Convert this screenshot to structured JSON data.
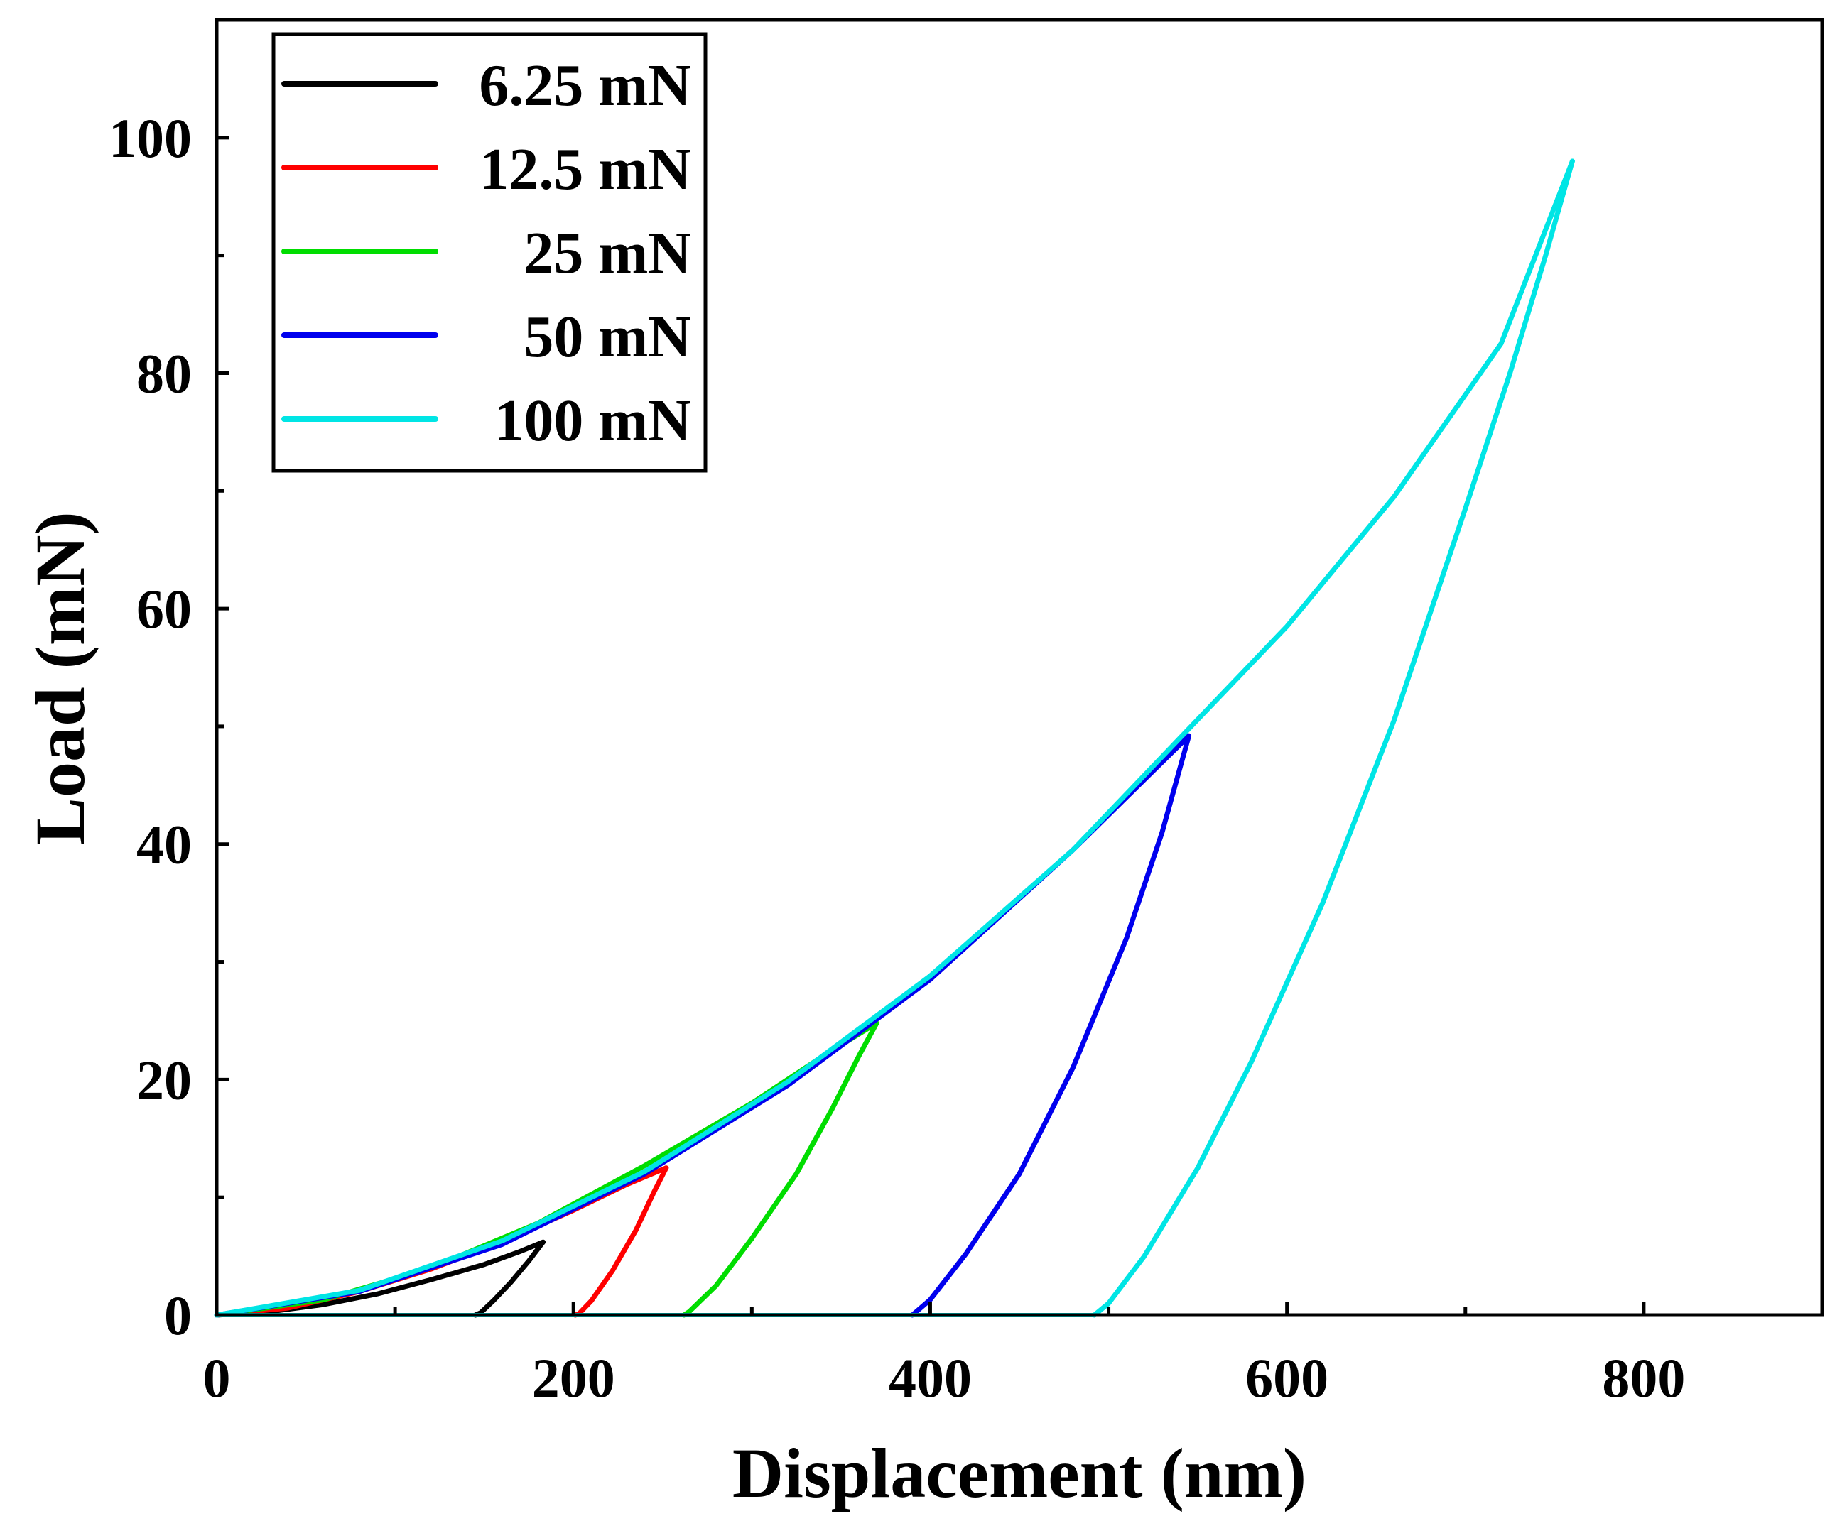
{
  "chart_data": {
    "type": "line",
    "title": "",
    "xlabel": "Displacement (nm)",
    "ylabel": "Load (mN)",
    "xlim": [
      0,
      900
    ],
    "ylim": [
      0,
      110
    ],
    "x_ticks": [
      0,
      200,
      400,
      600,
      800
    ],
    "x_minor_ticks": [
      100,
      300,
      500,
      700
    ],
    "y_ticks": [
      0,
      20,
      40,
      60,
      80,
      100
    ],
    "y_minor_ticks": [
      10,
      30,
      50,
      70,
      90
    ],
    "grid": false,
    "legend_position": "top-left",
    "series": [
      {
        "name": "6.25 mN",
        "color": "#000000",
        "loading": [
          [
            0,
            0
          ],
          [
            30,
            0.3
          ],
          [
            60,
            0.9
          ],
          [
            90,
            1.8
          ],
          [
            120,
            3.0
          ],
          [
            150,
            4.3
          ],
          [
            170,
            5.4
          ],
          [
            183,
            6.2
          ]
        ],
        "unloading": [
          [
            183,
            6.2
          ],
          [
            175,
            4.6
          ],
          [
            165,
            2.8
          ],
          [
            155,
            1.2
          ],
          [
            148,
            0.2
          ],
          [
            145,
            0
          ]
        ]
      },
      {
        "name": "12.5 mN",
        "color": "#ff0000",
        "loading": [
          [
            0,
            0
          ],
          [
            40,
            0.6
          ],
          [
            80,
            2.0
          ],
          [
            120,
            3.9
          ],
          [
            160,
            6.2
          ],
          [
            200,
            8.9
          ],
          [
            230,
            11.1
          ],
          [
            252,
            12.5
          ]
        ],
        "unloading": [
          [
            252,
            12.5
          ],
          [
            245,
            10.4
          ],
          [
            235,
            7.2
          ],
          [
            222,
            3.8
          ],
          [
            210,
            1.2
          ],
          [
            203,
            0.1
          ],
          [
            201,
            0
          ]
        ]
      },
      {
        "name": "25 mN",
        "color": "#00dd00",
        "loading": [
          [
            0,
            0
          ],
          [
            60,
            1.3
          ],
          [
            120,
            4.0
          ],
          [
            180,
            7.8
          ],
          [
            240,
            12.7
          ],
          [
            300,
            18.0
          ],
          [
            340,
            22.0
          ],
          [
            370,
            24.8
          ]
        ],
        "unloading": [
          [
            370,
            24.8
          ],
          [
            360,
            22.0
          ],
          [
            345,
            17.5
          ],
          [
            325,
            12.0
          ],
          [
            300,
            6.5
          ],
          [
            280,
            2.5
          ],
          [
            265,
            0.3
          ],
          [
            262,
            0
          ]
        ]
      },
      {
        "name": "50 mN",
        "color": "#0000ee",
        "loading": [
          [
            0,
            0
          ],
          [
            80,
            2.0
          ],
          [
            160,
            6.0
          ],
          [
            240,
            12.0
          ],
          [
            320,
            19.5
          ],
          [
            400,
            28.5
          ],
          [
            480,
            39.5
          ],
          [
            545,
            49.2
          ]
        ],
        "unloading": [
          [
            545,
            49.2
          ],
          [
            530,
            41.0
          ],
          [
            510,
            32.0
          ],
          [
            480,
            21.0
          ],
          [
            450,
            12.0
          ],
          [
            420,
            5.2
          ],
          [
            400,
            1.3
          ],
          [
            390,
            0
          ]
        ]
      },
      {
        "name": "100 mN",
        "color": "#00e5e5",
        "loading": [
          [
            0,
            0
          ],
          [
            80,
            2.1
          ],
          [
            160,
            6.3
          ],
          [
            240,
            12.2
          ],
          [
            320,
            19.8
          ],
          [
            400,
            28.8
          ],
          [
            480,
            39.5
          ],
          [
            545,
            49.8
          ],
          [
            600,
            58.5
          ],
          [
            660,
            69.5
          ],
          [
            720,
            82.5
          ],
          [
            760,
            98.0
          ]
        ],
        "unloading": [
          [
            760,
            98.0
          ],
          [
            745,
            90.0
          ],
          [
            725,
            80.0
          ],
          [
            700,
            68.5
          ],
          [
            660,
            50.5
          ],
          [
            620,
            35.0
          ],
          [
            580,
            21.5
          ],
          [
            550,
            12.5
          ],
          [
            520,
            5.0
          ],
          [
            500,
            1.0
          ],
          [
            492,
            0
          ]
        ]
      }
    ],
    "legend": [
      "6.25 mN",
      "12.5 mN",
      "25 mN",
      "50 mN",
      "100 mN"
    ]
  }
}
